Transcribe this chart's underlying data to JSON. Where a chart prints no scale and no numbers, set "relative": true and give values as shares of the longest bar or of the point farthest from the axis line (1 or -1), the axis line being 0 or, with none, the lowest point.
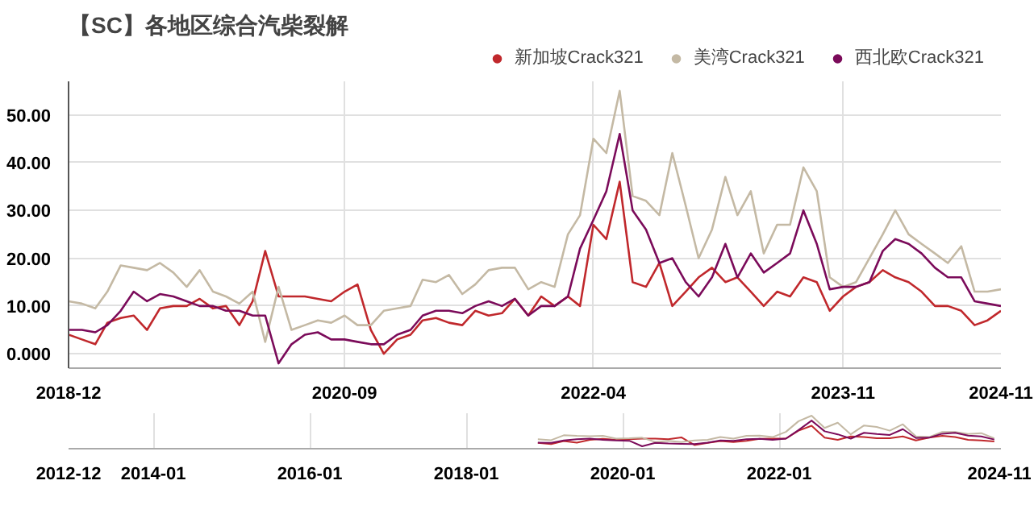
{
  "chart_data": [
    {
      "type": "line",
      "title": "【SC】各地区综合汽柴裂解",
      "x": [
        "2018-12",
        "2019-01",
        "2019-02",
        "2019-03",
        "2019-04",
        "2019-05",
        "2019-06",
        "2019-07",
        "2019-08",
        "2019-09",
        "2019-10",
        "2019-11",
        "2019-12",
        "2020-01",
        "2020-02",
        "2020-03",
        "2020-04",
        "2020-05",
        "2020-06",
        "2020-07",
        "2020-08",
        "2020-09",
        "2020-10",
        "2020-11",
        "2020-12",
        "2021-01",
        "2021-02",
        "2021-03",
        "2021-04",
        "2021-05",
        "2021-06",
        "2021-07",
        "2021-08",
        "2021-09",
        "2021-10",
        "2021-11",
        "2021-12",
        "2022-01",
        "2022-02",
        "2022-03",
        "2022-04",
        "2022-05",
        "2022-06",
        "2022-07",
        "2022-08",
        "2022-09",
        "2022-10",
        "2022-11",
        "2022-12",
        "2023-01",
        "2023-02",
        "2023-03",
        "2023-04",
        "2023-05",
        "2023-06",
        "2023-07",
        "2023-08",
        "2023-09",
        "2023-10",
        "2023-11",
        "2023-12",
        "2024-01",
        "2024-02",
        "2024-03",
        "2024-04",
        "2024-05",
        "2024-06",
        "2024-07",
        "2024-08",
        "2024-09",
        "2024-10",
        "2024-11"
      ],
      "series": [
        {
          "name": "新加坡Crack321",
          "color": "#c0282c",
          "values": [
            4,
            3,
            2,
            6.5,
            7.5,
            8,
            5,
            9.5,
            10,
            10,
            11.5,
            9.5,
            10,
            6,
            11,
            21.5,
            12,
            12,
            12,
            11.5,
            11,
            13,
            14.5,
            5,
            0,
            3,
            4,
            7,
            7.5,
            6.5,
            6,
            9,
            8,
            8.5,
            11.5,
            8,
            12,
            10,
            12,
            10,
            27,
            24,
            36,
            15,
            14,
            19,
            10,
            13,
            16,
            18,
            15,
            16,
            13,
            10,
            13,
            12,
            16,
            15,
            9,
            12,
            14,
            15,
            17.5,
            16,
            15,
            13,
            10,
            10,
            9,
            6,
            7,
            9
          ]
        },
        {
          "name": "美湾Crack321",
          "color": "#c4b9a4",
          "values": [
            11,
            10.5,
            9.5,
            13,
            18.5,
            18,
            17.5,
            19,
            17,
            14,
            17.5,
            13,
            12,
            10.5,
            13,
            2.5,
            14,
            5,
            6,
            7,
            6.5,
            8,
            6,
            6,
            9,
            9.5,
            10,
            15.5,
            15,
            16.5,
            12.5,
            14.5,
            17.5,
            18,
            18,
            13.5,
            15,
            14,
            25,
            29,
            45,
            42,
            55,
            33,
            32,
            29,
            42,
            31,
            20,
            26,
            37,
            29,
            34,
            21,
            27,
            27,
            39,
            34,
            16,
            14,
            15,
            20,
            25,
            30,
            25,
            23,
            21,
            19,
            22.5,
            13,
            13,
            13.5
          ]
        },
        {
          "name": "西北欧Crack321",
          "color": "#7b0b5a",
          "values": [
            5,
            5,
            4.5,
            6,
            9,
            13,
            11,
            12.5,
            12,
            11,
            10,
            10,
            9,
            9,
            8,
            8,
            -2,
            2,
            4,
            4.5,
            3,
            3,
            2.5,
            2,
            2,
            4,
            5,
            8,
            9,
            9,
            8.5,
            10,
            11,
            10,
            11.5,
            8,
            10,
            10,
            12,
            22,
            28,
            34,
            46,
            30,
            26,
            19,
            20,
            15,
            12,
            16,
            23,
            16,
            21,
            17,
            19,
            21,
            30,
            23,
            13.5,
            14,
            14,
            15,
            21.5,
            24,
            23,
            21,
            18,
            16,
            16,
            11,
            10.5,
            10
          ]
        }
      ],
      "ylim": [
        -3,
        57
      ],
      "yticks": [
        {
          "value": 0,
          "label": "0.000"
        },
        {
          "value": 10,
          "label": "10.00"
        },
        {
          "value": 20,
          "label": "20.00"
        },
        {
          "value": 30,
          "label": "30.00"
        },
        {
          "value": 40,
          "label": "40.00"
        },
        {
          "value": 50,
          "label": "50.00"
        }
      ],
      "xlim": [
        "2018-12",
        "2024-11"
      ],
      "xticks": [
        {
          "value": "2018-12",
          "label": "2018-12"
        },
        {
          "value": "2020-09",
          "label": "2020-09"
        },
        {
          "value": "2022-04",
          "label": "2022-04"
        },
        {
          "value": "2023-11",
          "label": "2023-11"
        },
        {
          "value": "2024-11",
          "label": "2024-11"
        }
      ],
      "grid": true,
      "legend": "top right"
    },
    {
      "type": "line",
      "relative": true,
      "x": [
        "2018-12",
        "2019-02",
        "2019-04",
        "2019-06",
        "2019-08",
        "2019-10",
        "2019-12",
        "2020-02",
        "2020-04",
        "2020-06",
        "2020-08",
        "2020-10",
        "2020-12",
        "2021-02",
        "2021-04",
        "2021-06",
        "2021-08",
        "2021-10",
        "2021-12",
        "2022-02",
        "2022-04",
        "2022-06",
        "2022-08",
        "2022-10",
        "2022-12",
        "2023-02",
        "2023-04",
        "2023-06",
        "2023-08",
        "2023-10",
        "2023-12",
        "2024-02",
        "2024-04",
        "2024-06",
        "2024-08",
        "2024-10"
      ],
      "series": [
        {
          "color": "#c0282c",
          "values": [
            0.11,
            0.07,
            0.17,
            0.12,
            0.21,
            0.24,
            0.21,
            0.23,
            0.25,
            0.25,
            0.23,
            0.29,
            0.04,
            0.11,
            0.17,
            0.14,
            0.18,
            0.24,
            0.25,
            0.25,
            0.51,
            0.67,
            0.28,
            0.21,
            0.32,
            0.3,
            0.26,
            0.26,
            0.32,
            0.19,
            0.28,
            0.34,
            0.3,
            0.21,
            0.19,
            0.16
          ]
        },
        {
          "color": "#c4b9a4",
          "values": [
            0.23,
            0.2,
            0.36,
            0.34,
            0.33,
            0.34,
            0.25,
            0.26,
            0.28,
            0.14,
            0.18,
            0.14,
            0.19,
            0.21,
            0.3,
            0.25,
            0.34,
            0.35,
            0.3,
            0.47,
            0.82,
            1,
            0.6,
            0.77,
            0.39,
            0.68,
            0.63,
            0.51,
            0.72,
            0.32,
            0.3,
            0.47,
            0.47,
            0.4,
            0.43,
            0.26
          ]
        },
        {
          "color": "#7b0b5a",
          "values": [
            0.12,
            0.11,
            0.19,
            0.23,
            0.25,
            0.21,
            0.19,
            0.18,
            0,
            0.11,
            0.09,
            0.08,
            0.07,
            0.12,
            0.19,
            0.18,
            0.23,
            0.24,
            0.21,
            0.25,
            0.53,
            0.84,
            0.49,
            0.39,
            0.25,
            0.44,
            0.4,
            0.37,
            0.56,
            0.27,
            0.28,
            0.41,
            0.44,
            0.35,
            0.32,
            0.22
          ]
        }
      ],
      "xlim": [
        "2012-12",
        "2024-11"
      ],
      "xticks": [
        {
          "value": "2012-12",
          "label": "2012-12"
        },
        {
          "value": "2014-01",
          "label": "2014-01"
        },
        {
          "value": "2016-01",
          "label": "2016-01"
        },
        {
          "value": "2018-01",
          "label": "2018-01"
        },
        {
          "value": "2020-01",
          "label": "2020-01"
        },
        {
          "value": "2022-01",
          "label": "2022-01"
        },
        {
          "value": "2024-11",
          "label": "2024-11"
        }
      ],
      "tick_labels": "x",
      "grid": "x"
    }
  ]
}
